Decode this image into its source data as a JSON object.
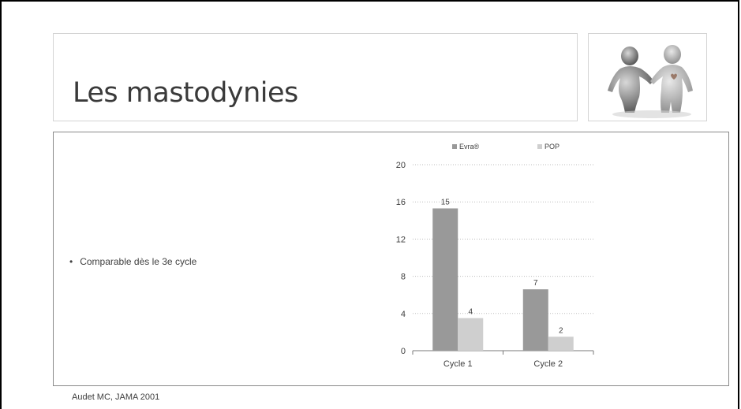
{
  "slide": {
    "title": "Les mastodynies",
    "bullet": "Comparable dès le 3e cycle",
    "citation": "Audet MC, JAMA 2001",
    "logo_icon": "couple-holding-hands-icon"
  },
  "chart_data": {
    "type": "bar",
    "title": "",
    "xlabel": "",
    "ylabel": "",
    "categories": [
      "Cycle 1",
      "Cycle 2"
    ],
    "series": [
      {
        "name": "Evra®",
        "values": [
          15.3,
          6.6
        ],
        "labels": [
          "15",
          "7"
        ],
        "color": "#999999"
      },
      {
        "name": "POP",
        "values": [
          3.5,
          1.5
        ],
        "labels": [
          "4",
          "2"
        ],
        "color": "#cfcfcf"
      }
    ],
    "ylim": [
      0,
      20
    ],
    "yticks": [
      0,
      4,
      8,
      12,
      16,
      20
    ],
    "grid": true,
    "legend": "top"
  }
}
